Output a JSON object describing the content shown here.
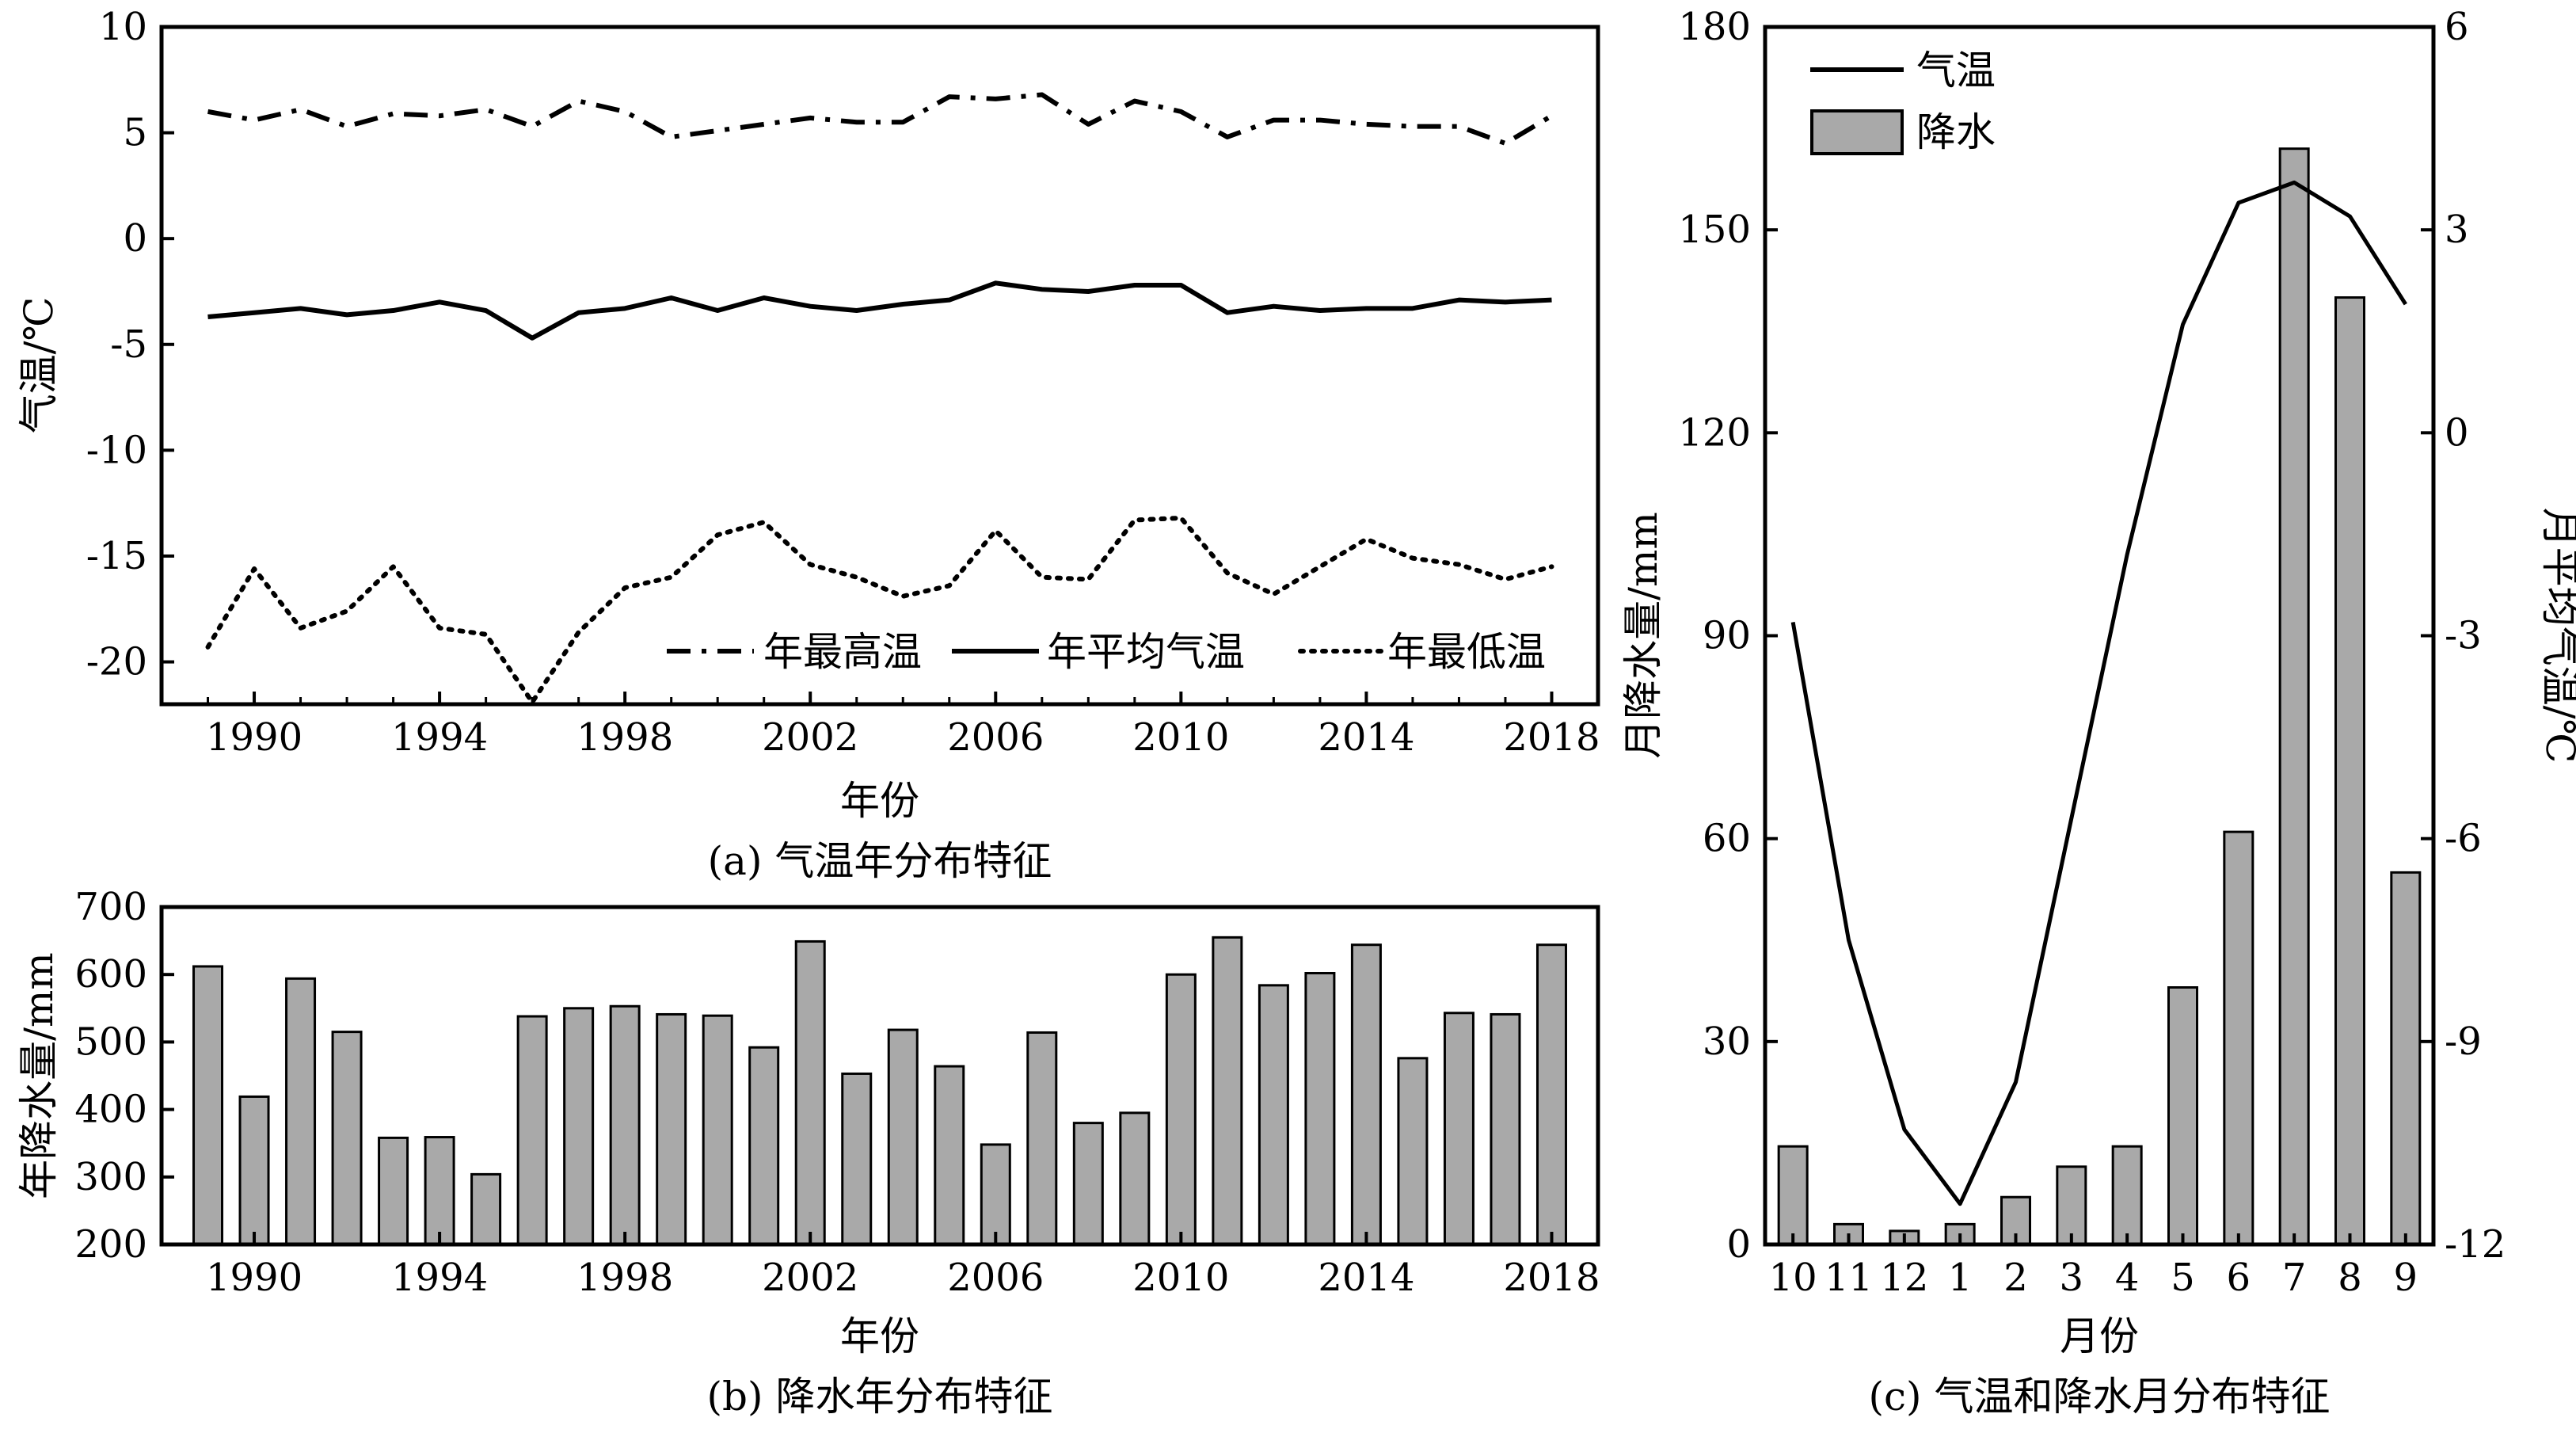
{
  "colors": {
    "bar_fill": "#a9a9a9",
    "bar_stroke": "#000000",
    "line": "#000000",
    "background": "#ffffff"
  },
  "panel_a": {
    "caption": "(a) 气温年分布特征",
    "xlabel": "年份",
    "ylabel": "气温/℃",
    "legend": {
      "max": "年最高温",
      "mean": "年平均气温",
      "min": "年最低温"
    }
  },
  "panel_b": {
    "caption": "(b) 降水年分布特征",
    "xlabel": "年份",
    "ylabel": "年降水量/mm"
  },
  "panel_c": {
    "caption": "(c) 气温和降水月分布特征",
    "xlabel": "月份",
    "ylabel_left": "月降水量/mm",
    "ylabel_right": "月平均气温/℃",
    "legend": {
      "temp": "气温",
      "precip": "降水"
    }
  },
  "chart_data": [
    {
      "type": "line",
      "title": "(a) 气温年分布特征",
      "xlabel": "年份",
      "ylabel": "气温/℃",
      "xlim": [
        1988,
        2019
      ],
      "ylim": [
        -22,
        10
      ],
      "xticks": [
        1990,
        1994,
        1998,
        2002,
        2006,
        2010,
        2014,
        2018
      ],
      "yticks": [
        10,
        5,
        0,
        -5,
        -10,
        -15,
        -20
      ],
      "legend_position": "bottom-right",
      "x": [
        1989,
        1990,
        1991,
        1992,
        1993,
        1994,
        1995,
        1996,
        1997,
        1998,
        1999,
        2000,
        2001,
        2002,
        2003,
        2004,
        2005,
        2006,
        2007,
        2008,
        2009,
        2010,
        2011,
        2012,
        2013,
        2014,
        2015,
        2016,
        2017,
        2018
      ],
      "series": [
        {
          "name": "年最高温",
          "style": "dashdot",
          "values": [
            6.0,
            5.6,
            6.1,
            5.3,
            5.9,
            5.8,
            6.1,
            5.3,
            6.5,
            6.0,
            4.8,
            5.1,
            5.4,
            5.7,
            5.5,
            5.5,
            6.7,
            6.6,
            6.8,
            5.4,
            6.5,
            6.0,
            4.8,
            5.6,
            5.6,
            5.4,
            5.3,
            5.3,
            4.5,
            5.8
          ]
        },
        {
          "name": "年平均气温",
          "style": "solid",
          "values": [
            -3.7,
            -3.5,
            -3.3,
            -3.6,
            -3.4,
            -3.0,
            -3.4,
            -4.7,
            -3.5,
            -3.3,
            -2.8,
            -3.4,
            -2.8,
            -3.2,
            -3.4,
            -3.1,
            -2.9,
            -2.1,
            -2.4,
            -2.5,
            -2.2,
            -2.2,
            -3.5,
            -3.2,
            -3.4,
            -3.3,
            -3.3,
            -2.9,
            -3.0,
            -2.9
          ]
        },
        {
          "name": "年最低温",
          "style": "dotted",
          "values": [
            -19.3,
            -15.6,
            -18.4,
            -17.6,
            -15.5,
            -18.4,
            -18.7,
            -21.9,
            -18.6,
            -16.5,
            -16.0,
            -14.0,
            -13.4,
            -15.4,
            -16.0,
            -16.9,
            -16.4,
            -13.8,
            -16.0,
            -16.1,
            -13.3,
            -13.2,
            -15.8,
            -16.8,
            -15.5,
            -14.2,
            -15.1,
            -15.4,
            -16.1,
            -15.5
          ]
        }
      ]
    },
    {
      "type": "bar",
      "title": "(b) 降水年分布特征",
      "xlabel": "年份",
      "ylabel": "年降水量/mm",
      "xlim": [
        1988,
        2019
      ],
      "ylim": [
        200,
        700
      ],
      "xticks": [
        1990,
        1994,
        1998,
        2002,
        2006,
        2010,
        2014,
        2018
      ],
      "yticks": [
        700,
        600,
        500,
        400,
        300,
        200
      ],
      "categories": [
        1989,
        1990,
        1991,
        1992,
        1993,
        1994,
        1995,
        1996,
        1997,
        1998,
        1999,
        2000,
        2001,
        2002,
        2003,
        2004,
        2005,
        2006,
        2007,
        2008,
        2009,
        2010,
        2011,
        2012,
        2013,
        2014,
        2015,
        2016,
        2017,
        2018
      ],
      "values": [
        612,
        419,
        594,
        515,
        358,
        359,
        304,
        538,
        550,
        553,
        541,
        539,
        492,
        649,
        453,
        518,
        464,
        348,
        514,
        380,
        395,
        600,
        655,
        584,
        602,
        644,
        476,
        543,
        541,
        644
      ]
    },
    {
      "type": "bar+line",
      "title": "(c) 气温和降水月分布特征",
      "xlabel": "月份",
      "ylabel_left": "月降水量/mm",
      "ylabel_right": "月平均气温/℃",
      "categories": [
        "10",
        "11",
        "12",
        "1",
        "2",
        "3",
        "4",
        "5",
        "6",
        "7",
        "8",
        "9"
      ],
      "ylim_left": [
        0,
        180
      ],
      "yticks_left": [
        0,
        30,
        60,
        90,
        120,
        150,
        180
      ],
      "ylim_right": [
        -12,
        6
      ],
      "yticks_right": [
        -12,
        -9,
        -6,
        -3,
        0,
        3,
        6
      ],
      "legend_position": "top-left",
      "series": [
        {
          "name": "降水",
          "type": "bar",
          "axis": "left",
          "values": [
            14.5,
            3.0,
            2.0,
            3.0,
            7.0,
            11.5,
            14.5,
            38.0,
            61.0,
            162.0,
            140.0,
            55.0
          ]
        },
        {
          "name": "气温",
          "type": "line",
          "axis": "right",
          "values": [
            -2.8,
            -7.5,
            -10.3,
            -11.4,
            -9.6,
            -5.7,
            -1.8,
            1.6,
            3.4,
            3.7,
            3.2,
            1.9
          ]
        }
      ]
    }
  ]
}
